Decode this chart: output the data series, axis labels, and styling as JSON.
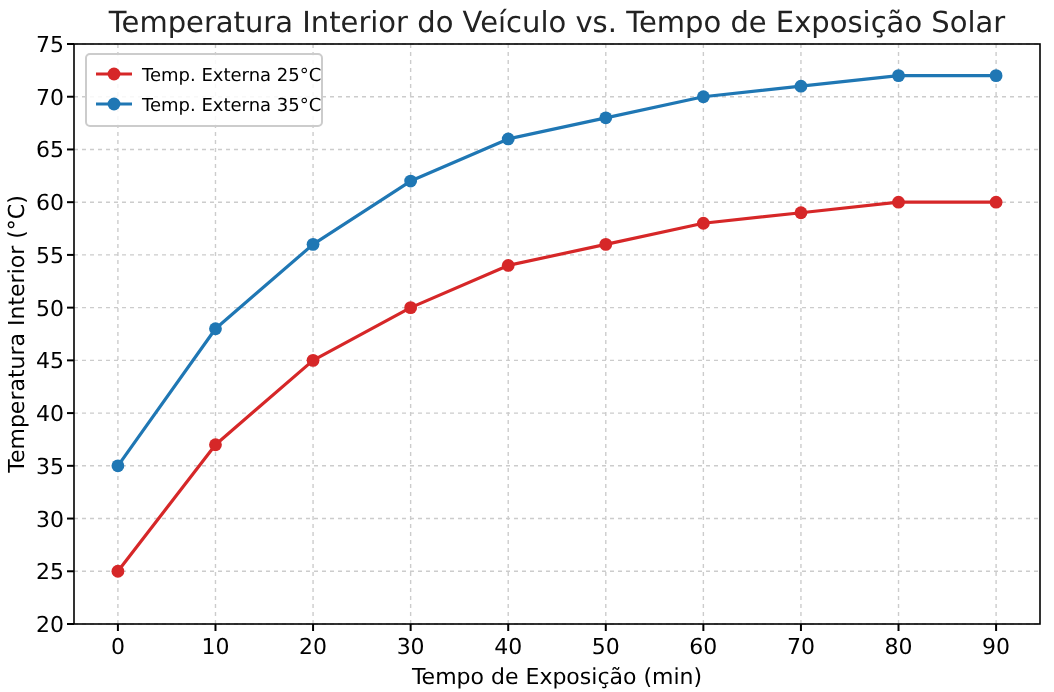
{
  "chart_data": {
    "type": "line",
    "title": "Temperatura Interior do Veículo vs. Tempo de Exposição Solar",
    "xlabel": "Tempo de Exposição (min)",
    "ylabel": "Temperatura Interior (°C)",
    "x": [
      0,
      10,
      20,
      30,
      40,
      50,
      60,
      70,
      80,
      90
    ],
    "series": [
      {
        "name": "Temp. Externa 25°C",
        "color": "#d62728",
        "values": [
          25,
          37,
          45,
          50,
          54,
          56,
          58,
          59,
          60,
          60
        ]
      },
      {
        "name": "Temp. Externa 35°C",
        "color": "#1f77b4",
        "values": [
          35,
          48,
          56,
          62,
          66,
          68,
          70,
          71,
          72,
          72
        ]
      }
    ],
    "xlim": [
      -4.5,
      94.5
    ],
    "xticks": [
      0,
      10,
      20,
      30,
      40,
      50,
      60,
      70,
      80,
      90
    ],
    "ylim": [
      20,
      75
    ],
    "yticks": [
      20,
      25,
      30,
      35,
      40,
      45,
      50,
      55,
      60,
      65,
      70,
      75
    ],
    "grid": true,
    "legend": "top left",
    "marker": "circle",
    "line_style": "solid"
  }
}
